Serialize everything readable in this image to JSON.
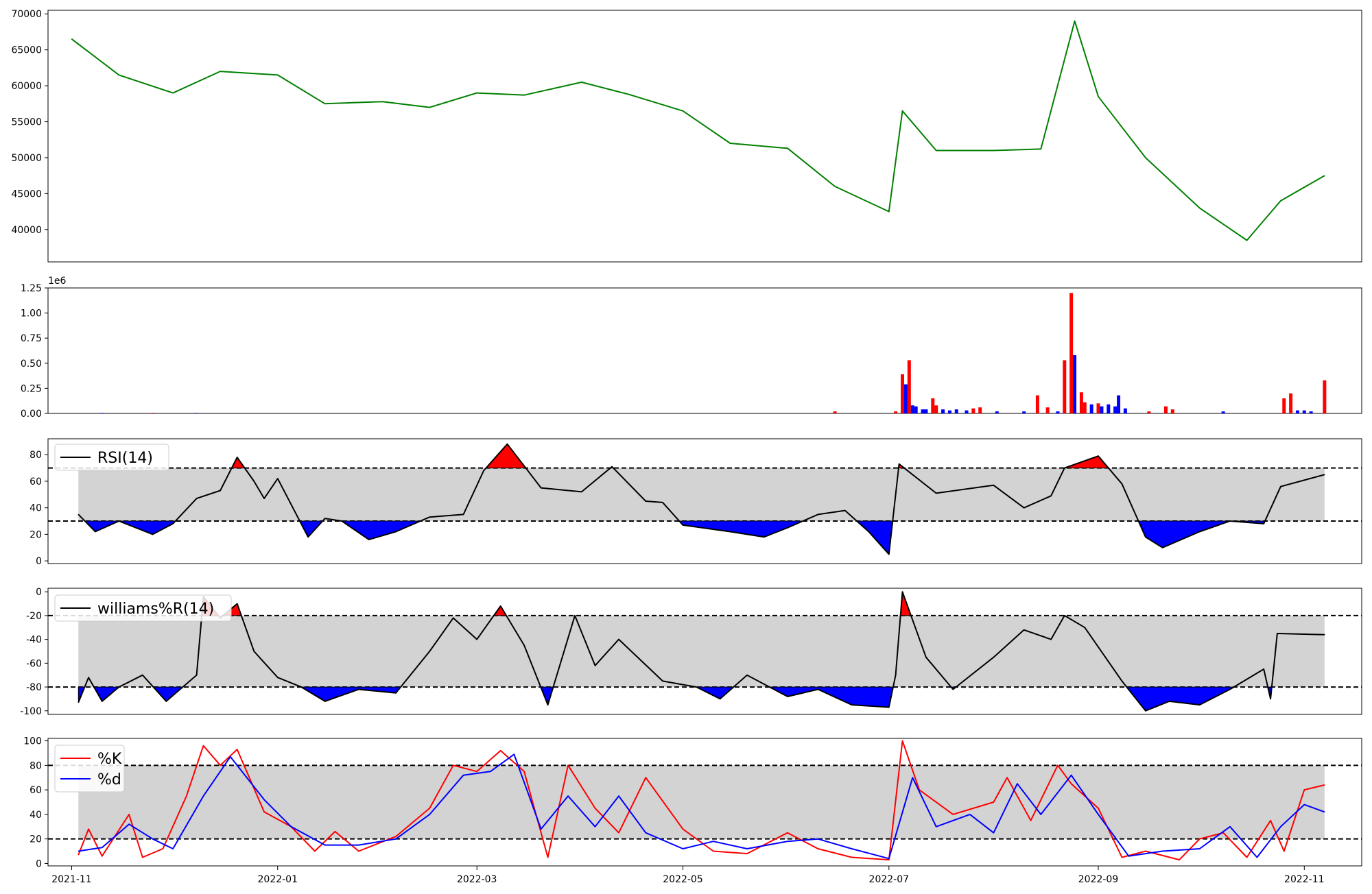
{
  "chart_data": [
    {
      "type": "line",
      "name": "price",
      "color": "#008000",
      "ylim": [
        35500,
        70500
      ],
      "yticks": [
        40000,
        45000,
        50000,
        55000,
        60000,
        65000,
        70000
      ],
      "x": [
        "2021-11-01",
        "2021-11-15",
        "2021-12-01",
        "2021-12-15",
        "2022-01-01",
        "2022-01-15",
        "2022-02-01",
        "2022-02-15",
        "2022-03-01",
        "2022-03-15",
        "2022-04-01",
        "2022-04-15",
        "2022-05-01",
        "2022-05-15",
        "2022-06-01",
        "2022-06-15",
        "2022-07-01",
        "2022-07-05",
        "2022-07-15",
        "2022-08-01",
        "2022-08-15",
        "2022-08-25",
        "2022-09-01",
        "2022-09-15",
        "2022-10-01",
        "2022-10-15",
        "2022-10-25",
        "2022-11-07"
      ],
      "y": [
        66500,
        61500,
        59000,
        62000,
        61500,
        57500,
        57800,
        57000,
        59000,
        58700,
        60500,
        58800,
        56500,
        52000,
        51300,
        46000,
        42500,
        56500,
        51000,
        51000,
        51200,
        69000,
        58500,
        50000,
        43000,
        38500,
        44000,
        47500
      ]
    },
    {
      "type": "bar",
      "name": "volume",
      "ylim": [
        0,
        1250000
      ],
      "yticks": [
        0,
        250000,
        500000,
        750000,
        1000000,
        1250000
      ],
      "ytick_labels": [
        "0.00",
        "0.25",
        "0.50",
        "0.75",
        "1.00",
        "1.25"
      ],
      "offset_label": "1e6",
      "colors": {
        "up": "#ff0000",
        "down": "#0000ff"
      },
      "bars": [
        {
          "x": "2021-11-10",
          "v": 5000,
          "c": "down"
        },
        {
          "x": "2021-11-25",
          "v": 6000,
          "c": "up"
        },
        {
          "x": "2021-12-08",
          "v": 5000,
          "c": "down"
        },
        {
          "x": "2022-06-15",
          "v": 20000,
          "c": "up"
        },
        {
          "x": "2022-07-03",
          "v": 20000,
          "c": "up"
        },
        {
          "x": "2022-07-05",
          "v": 390000,
          "c": "up"
        },
        {
          "x": "2022-07-06",
          "v": 290000,
          "c": "down"
        },
        {
          "x": "2022-07-07",
          "v": 530000,
          "c": "up"
        },
        {
          "x": "2022-07-08",
          "v": 80000,
          "c": "down"
        },
        {
          "x": "2022-07-09",
          "v": 70000,
          "c": "down"
        },
        {
          "x": "2022-07-11",
          "v": 40000,
          "c": "down"
        },
        {
          "x": "2022-07-12",
          "v": 40000,
          "c": "down"
        },
        {
          "x": "2022-07-14",
          "v": 150000,
          "c": "up"
        },
        {
          "x": "2022-07-15",
          "v": 80000,
          "c": "up"
        },
        {
          "x": "2022-07-17",
          "v": 40000,
          "c": "down"
        },
        {
          "x": "2022-07-19",
          "v": 30000,
          "c": "down"
        },
        {
          "x": "2022-07-21",
          "v": 40000,
          "c": "down"
        },
        {
          "x": "2022-07-24",
          "v": 30000,
          "c": "down"
        },
        {
          "x": "2022-07-26",
          "v": 50000,
          "c": "up"
        },
        {
          "x": "2022-07-28",
          "v": 60000,
          "c": "up"
        },
        {
          "x": "2022-08-02",
          "v": 20000,
          "c": "down"
        },
        {
          "x": "2022-08-10",
          "v": 20000,
          "c": "down"
        },
        {
          "x": "2022-08-14",
          "v": 180000,
          "c": "up"
        },
        {
          "x": "2022-08-17",
          "v": 60000,
          "c": "up"
        },
        {
          "x": "2022-08-20",
          "v": 20000,
          "c": "down"
        },
        {
          "x": "2022-08-22",
          "v": 530000,
          "c": "up"
        },
        {
          "x": "2022-08-24",
          "v": 1200000,
          "c": "up"
        },
        {
          "x": "2022-08-25",
          "v": 580000,
          "c": "down"
        },
        {
          "x": "2022-08-27",
          "v": 210000,
          "c": "up"
        },
        {
          "x": "2022-08-28",
          "v": 110000,
          "c": "up"
        },
        {
          "x": "2022-08-30",
          "v": 90000,
          "c": "down"
        },
        {
          "x": "2022-09-01",
          "v": 100000,
          "c": "up"
        },
        {
          "x": "2022-09-02",
          "v": 70000,
          "c": "down"
        },
        {
          "x": "2022-09-04",
          "v": 90000,
          "c": "down"
        },
        {
          "x": "2022-09-06",
          "v": 70000,
          "c": "down"
        },
        {
          "x": "2022-09-07",
          "v": 180000,
          "c": "down"
        },
        {
          "x": "2022-09-09",
          "v": 50000,
          "c": "down"
        },
        {
          "x": "2022-09-16",
          "v": 20000,
          "c": "up"
        },
        {
          "x": "2022-09-21",
          "v": 70000,
          "c": "up"
        },
        {
          "x": "2022-09-23",
          "v": 40000,
          "c": "up"
        },
        {
          "x": "2022-10-08",
          "v": 20000,
          "c": "down"
        },
        {
          "x": "2022-10-26",
          "v": 150000,
          "c": "up"
        },
        {
          "x": "2022-10-28",
          "v": 200000,
          "c": "up"
        },
        {
          "x": "2022-10-30",
          "v": 30000,
          "c": "down"
        },
        {
          "x": "2022-11-01",
          "v": 30000,
          "c": "down"
        },
        {
          "x": "2022-11-03",
          "v": 20000,
          "c": "down"
        },
        {
          "x": "2022-11-07",
          "v": 330000,
          "c": "up"
        }
      ]
    },
    {
      "type": "line",
      "name": "rsi",
      "legend": "RSI(14)",
      "ylim": [
        -2,
        92
      ],
      "yticks": [
        0,
        20,
        40,
        60,
        80
      ],
      "upper": 70,
      "lower": 30,
      "x": [
        "2021-11-03",
        "2021-11-08",
        "2021-11-15",
        "2021-11-25",
        "2021-12-01",
        "2021-12-08",
        "2021-12-15",
        "2021-12-20",
        "2021-12-25",
        "2021-12-28",
        "2022-01-01",
        "2022-01-10",
        "2022-01-15",
        "2022-01-20",
        "2022-01-28",
        "2022-02-05",
        "2022-02-15",
        "2022-02-25",
        "2022-03-03",
        "2022-03-10",
        "2022-03-20",
        "2022-04-01",
        "2022-04-10",
        "2022-04-20",
        "2022-04-25",
        "2022-05-01",
        "2022-05-15",
        "2022-05-25",
        "2022-06-01",
        "2022-06-10",
        "2022-06-18",
        "2022-06-25",
        "2022-07-01",
        "2022-07-04",
        "2022-07-15",
        "2022-08-01",
        "2022-08-10",
        "2022-08-18",
        "2022-08-22",
        "2022-09-01",
        "2022-09-08",
        "2022-09-15",
        "2022-09-20",
        "2022-10-01",
        "2022-10-10",
        "2022-10-20",
        "2022-10-25",
        "2022-11-07"
      ],
      "y": [
        35,
        22,
        30,
        20,
        28,
        47,
        53,
        78,
        60,
        47,
        62,
        18,
        32,
        30,
        16,
        22,
        33,
        35,
        68,
        88,
        55,
        52,
        71,
        45,
        44,
        27,
        22,
        18,
        25,
        35,
        38,
        22,
        5,
        73,
        51,
        57,
        40,
        49,
        70,
        79,
        58,
        18,
        10,
        22,
        30,
        28,
        56,
        65
      ]
    },
    {
      "type": "line",
      "name": "williams",
      "legend": "williams%R(14)",
      "ylim": [
        -103,
        3
      ],
      "yticks": [
        -100,
        -80,
        -60,
        -40,
        -20,
        0
      ],
      "upper": -20,
      "lower": -80,
      "x": [
        "2021-11-03",
        "2021-11-06",
        "2021-11-10",
        "2021-11-15",
        "2021-11-22",
        "2021-11-29",
        "2021-12-08",
        "2021-12-10",
        "2021-12-15",
        "2021-12-20",
        "2021-12-25",
        "2022-01-01",
        "2022-01-08",
        "2022-01-15",
        "2022-01-25",
        "2022-02-05",
        "2022-02-15",
        "2022-02-22",
        "2022-03-01",
        "2022-03-08",
        "2022-03-15",
        "2022-03-22",
        "2022-03-30",
        "2022-04-05",
        "2022-04-12",
        "2022-04-25",
        "2022-05-05",
        "2022-05-12",
        "2022-05-20",
        "2022-06-01",
        "2022-06-10",
        "2022-06-20",
        "2022-07-01",
        "2022-07-03",
        "2022-07-05",
        "2022-07-12",
        "2022-07-20",
        "2022-08-01",
        "2022-08-10",
        "2022-08-18",
        "2022-08-22",
        "2022-08-28",
        "2022-09-08",
        "2022-09-15",
        "2022-09-22",
        "2022-10-01",
        "2022-10-10",
        "2022-10-20",
        "2022-10-22",
        "2022-10-24",
        "2022-11-07"
      ],
      "y": [
        -93,
        -72,
        -92,
        -80,
        -70,
        -92,
        -70,
        -4,
        -22,
        -10,
        -50,
        -72,
        -80,
        -92,
        -82,
        -85,
        -50,
        -22,
        -40,
        -12,
        -45,
        -95,
        -20,
        -62,
        -40,
        -75,
        -80,
        -90,
        -70,
        -88,
        -82,
        -95,
        -97,
        -70,
        0,
        -55,
        -82,
        -55,
        -32,
        -40,
        -20,
        -30,
        -75,
        -100,
        -92,
        -95,
        -82,
        -65,
        -90,
        -35,
        -36
      ]
    },
    {
      "type": "line",
      "name": "stochastic",
      "ylim": [
        -2,
        102
      ],
      "yticks": [
        0,
        20,
        40,
        60,
        80,
        100
      ],
      "upper": 80,
      "lower": 20,
      "xticks": [
        "2021-11",
        "2022-01",
        "2022-03",
        "2022-05",
        "2022-07",
        "2022-09",
        "2022-11"
      ],
      "series": [
        {
          "name": "%K",
          "color": "#ff0000",
          "x": [
            "2021-11-03",
            "2021-11-06",
            "2021-11-10",
            "2021-11-18",
            "2021-11-22",
            "2021-11-28",
            "2021-12-05",
            "2021-12-10",
            "2021-12-15",
            "2021-12-20",
            "2021-12-28",
            "2022-01-05",
            "2022-01-12",
            "2022-01-18",
            "2022-01-25",
            "2022-02-05",
            "2022-02-15",
            "2022-02-22",
            "2022-03-01",
            "2022-03-08",
            "2022-03-15",
            "2022-03-22",
            "2022-03-28",
            "2022-04-05",
            "2022-04-12",
            "2022-04-20",
            "2022-05-01",
            "2022-05-10",
            "2022-05-20",
            "2022-06-01",
            "2022-06-10",
            "2022-06-20",
            "2022-07-01",
            "2022-07-05",
            "2022-07-10",
            "2022-07-20",
            "2022-08-01",
            "2022-08-05",
            "2022-08-12",
            "2022-08-20",
            "2022-08-24",
            "2022-09-01",
            "2022-09-08",
            "2022-09-15",
            "2022-09-25",
            "2022-10-01",
            "2022-10-08",
            "2022-10-15",
            "2022-10-22",
            "2022-10-26",
            "2022-11-01",
            "2022-11-07"
          ],
          "y": [
            7,
            28,
            6,
            40,
            5,
            12,
            55,
            96,
            80,
            93,
            42,
            30,
            10,
            26,
            10,
            22,
            45,
            80,
            75,
            92,
            75,
            5,
            80,
            45,
            25,
            70,
            28,
            10,
            8,
            25,
            12,
            5,
            3,
            100,
            60,
            40,
            50,
            70,
            35,
            80,
            65,
            45,
            5,
            10,
            3,
            20,
            25,
            5,
            35,
            10,
            60,
            64
          ]
        },
        {
          "name": "%d",
          "color": "#0000ff",
          "x": [
            "2021-11-03",
            "2021-11-10",
            "2021-11-18",
            "2021-11-25",
            "2021-12-01",
            "2021-12-10",
            "2021-12-18",
            "2021-12-28",
            "2022-01-05",
            "2022-01-15",
            "2022-01-25",
            "2022-02-05",
            "2022-02-15",
            "2022-02-25",
            "2022-03-05",
            "2022-03-12",
            "2022-03-20",
            "2022-03-28",
            "2022-04-05",
            "2022-04-12",
            "2022-04-20",
            "2022-05-01",
            "2022-05-10",
            "2022-05-20",
            "2022-06-01",
            "2022-06-10",
            "2022-06-20",
            "2022-07-01",
            "2022-07-08",
            "2022-07-15",
            "2022-07-25",
            "2022-08-01",
            "2022-08-08",
            "2022-08-15",
            "2022-08-24",
            "2022-09-01",
            "2022-09-10",
            "2022-09-20",
            "2022-10-01",
            "2022-10-10",
            "2022-10-18",
            "2022-10-25",
            "2022-11-01",
            "2022-11-07"
          ],
          "y": [
            10,
            13,
            32,
            20,
            12,
            55,
            87,
            52,
            30,
            15,
            15,
            20,
            40,
            72,
            75,
            89,
            28,
            55,
            30,
            55,
            25,
            12,
            18,
            12,
            18,
            20,
            12,
            4,
            70,
            30,
            40,
            25,
            65,
            40,
            72,
            40,
            6,
            10,
            12,
            30,
            5,
            30,
            48,
            42
          ]
        }
      ]
    }
  ]
}
